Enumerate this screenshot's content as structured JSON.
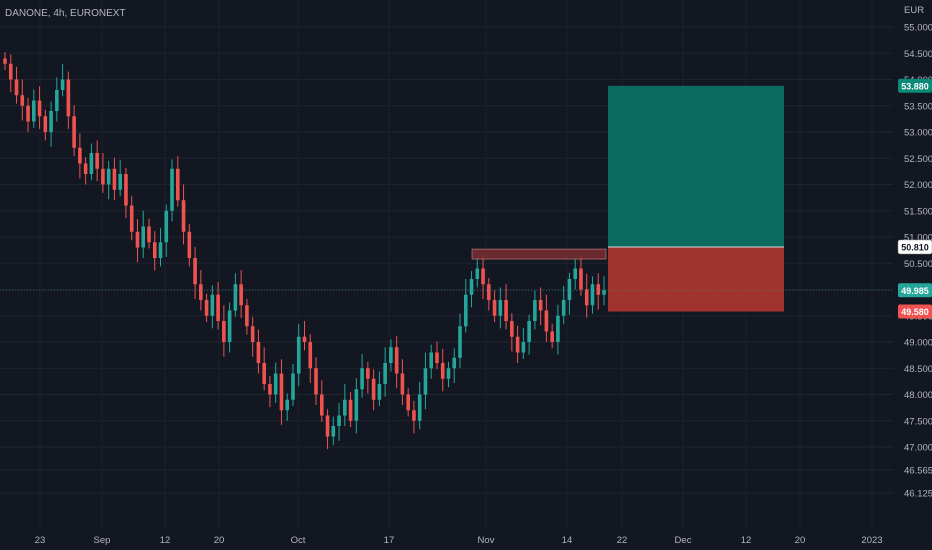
{
  "header": {
    "symbol_line": "DANONE, 4h, EURONEXT",
    "currency": "EUR"
  },
  "colors": {
    "background": "#131722",
    "up": "#26a69a",
    "down": "#ef5350",
    "target_zone": "#0b6b60",
    "stop_zone": "#a1332e",
    "resistance_zone": "#7a2e33",
    "text": "#b2b5be"
  },
  "chart_data": {
    "type": "candlestick",
    "y_axis": {
      "unit": "EUR",
      "range": [
        46.0,
        55.3
      ],
      "ticks": [
        "55.000",
        "54.500",
        "54.000",
        "53.500",
        "53.000",
        "52.500",
        "52.000",
        "51.500",
        "51.000",
        "50.500",
        "50.000",
        "49.500",
        "49.000",
        "48.500",
        "48.000",
        "47.500",
        "47.000",
        "46.565",
        "46.125"
      ]
    },
    "x_axis": {
      "ticks": [
        "23",
        "Sep",
        "12",
        "20",
        "Oct",
        "17",
        "Nov",
        "14",
        "22",
        "Dec",
        "12",
        "20",
        "2023"
      ]
    },
    "price_labels": [
      {
        "name": "take-profit",
        "text": "53.880",
        "value": 53.88,
        "fill": "#0b8a78",
        "text_color": "#ffffff"
      },
      {
        "name": "entry",
        "text": "50.810",
        "value": 50.81,
        "fill": "#ffffff",
        "text_color": "#131722"
      },
      {
        "name": "last-price",
        "text": "49.985",
        "value": 49.985,
        "fill": "#26a69a",
        "text_color": "#ffffff"
      },
      {
        "name": "stop-loss",
        "text": "49.580",
        "value": 49.58,
        "fill": "#ef5350",
        "text_color": "#ffffff"
      }
    ],
    "current_price": 49.985,
    "position": {
      "direction": "long",
      "entry": 50.81,
      "target": 53.88,
      "stop": 49.58,
      "start_date": "Nov 20",
      "end_date": "Dec 16"
    },
    "resistance_zone": {
      "low": 50.58,
      "high": 50.72,
      "start_date": "Oct 31",
      "end_date": "Nov 20"
    },
    "candles_approx_close": [
      54.3,
      54.0,
      53.7,
      53.5,
      53.2,
      53.6,
      53.3,
      53.0,
      53.4,
      53.8,
      54.0,
      53.3,
      52.7,
      52.4,
      52.2,
      52.6,
      52.3,
      52.0,
      52.3,
      51.9,
      52.2,
      51.6,
      51.1,
      50.8,
      51.2,
      50.9,
      50.6,
      50.9,
      51.5,
      52.3,
      51.7,
      51.1,
      50.6,
      50.1,
      49.8,
      49.5,
      49.9,
      49.4,
      49.0,
      49.6,
      50.1,
      49.7,
      49.3,
      49.0,
      48.6,
      48.2,
      48.0,
      48.4,
      47.7,
      47.9,
      48.4,
      49.1,
      49.0,
      48.5,
      48.0,
      47.6,
      47.2,
      47.4,
      47.6,
      47.9,
      47.5,
      48.1,
      48.5,
      48.3,
      47.9,
      48.2,
      48.6,
      48.9,
      48.4,
      48.0,
      47.7,
      47.5,
      48.0,
      48.5,
      48.8,
      48.6,
      48.3,
      48.5,
      48.7,
      49.3,
      49.9,
      50.2,
      50.4,
      50.1,
      49.8,
      49.5,
      49.8,
      49.4,
      49.1,
      48.8,
      49.0,
      49.4,
      49.8,
      49.6,
      49.2,
      49.0,
      49.5,
      49.8,
      50.2,
      50.4,
      50.0,
      49.7,
      50.1,
      49.9,
      49.985
    ]
  }
}
